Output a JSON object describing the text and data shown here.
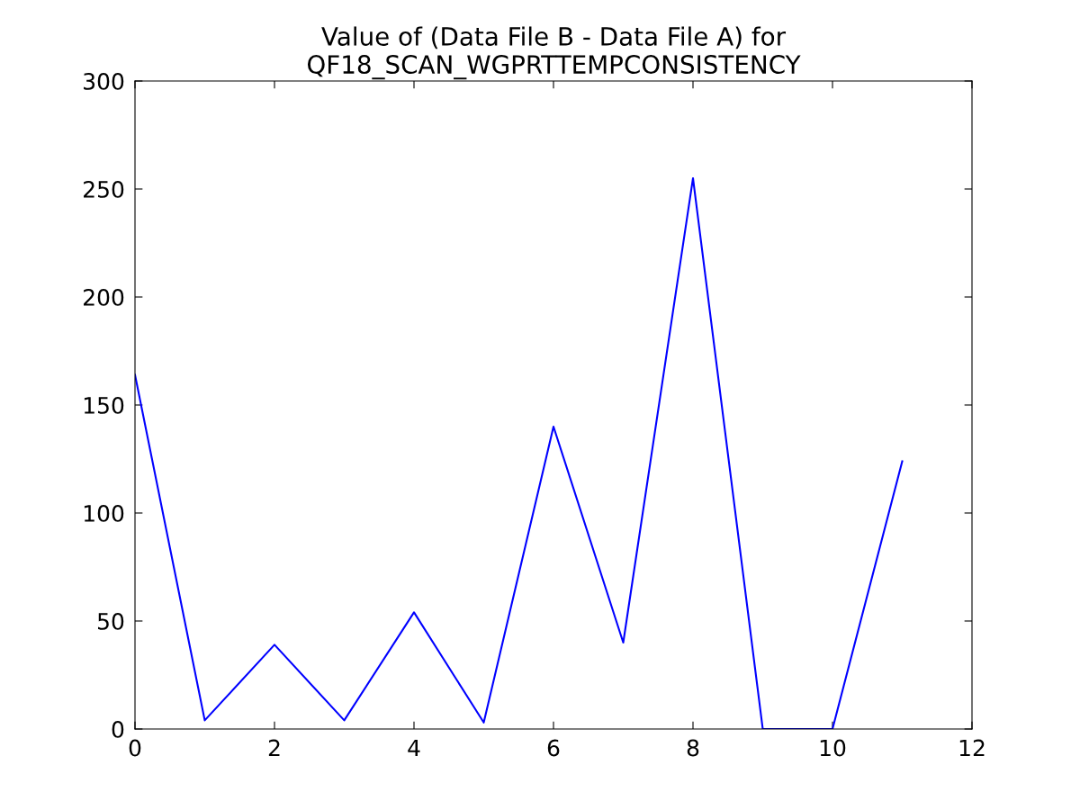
{
  "chart_data": {
    "type": "line",
    "title": "Value of (Data File B - Data File A) for\nQF18_SCAN_WGPRTTEMPCONSISTENCY",
    "x": [
      0,
      1,
      2,
      3,
      4,
      5,
      6,
      7,
      8,
      9,
      10,
      11
    ],
    "series": [
      {
        "color": "#0000ff",
        "values": [
          164,
          4,
          39,
          4,
          54,
          3,
          140,
          40,
          255,
          0,
          0,
          124
        ]
      }
    ],
    "xlim": [
      0,
      12
    ],
    "xticks": [
      0,
      2,
      4,
      6,
      8,
      10,
      12
    ],
    "ylim": [
      0,
      300
    ],
    "yticks": [
      0,
      50,
      100,
      150,
      200,
      250,
      300
    ],
    "grid": false,
    "legend": false,
    "marker": "none",
    "line_style": "solid"
  }
}
